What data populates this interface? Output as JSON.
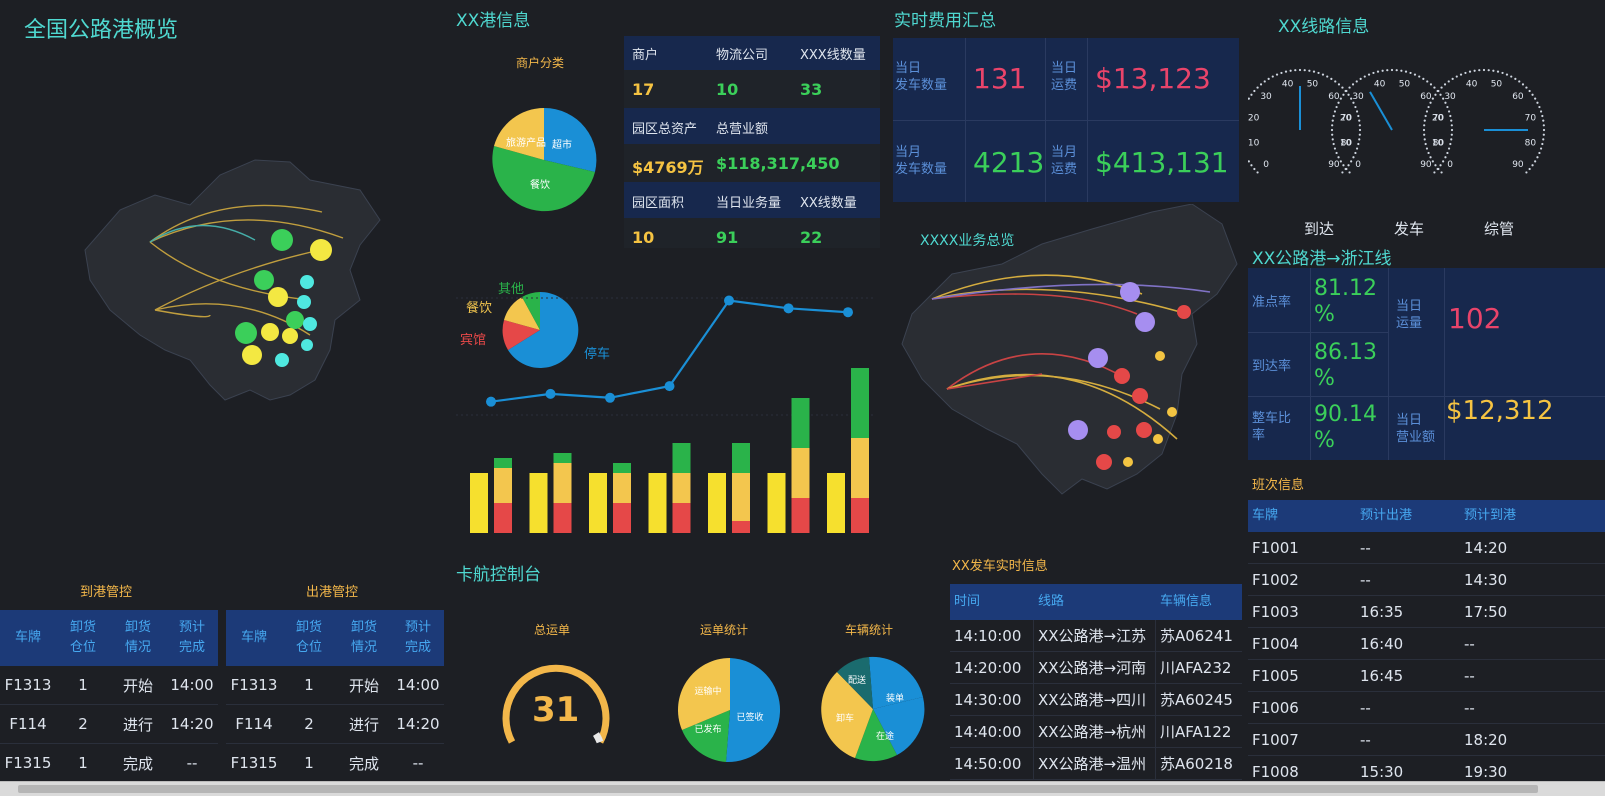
{
  "header": {
    "title": "全国公路港概览"
  },
  "port": {
    "title": "XX港信息",
    "pie_title": "商户分类",
    "pie_labels": [
      "超市",
      "餐饮",
      "旅游产品"
    ],
    "stats": [
      {
        "labels": [
          "商户",
          "物流公司",
          "XXX线数量"
        ],
        "values": [
          "17",
          "10",
          "33"
        ]
      },
      {
        "labels": [
          "园区总资产",
          "总营业额"
        ],
        "values": [
          "$4769万",
          "$118,317,450"
        ]
      },
      {
        "labels": [
          "园区面积",
          "当日业务量",
          "XX线数量"
        ],
        "values": [
          "10",
          "91",
          "22"
        ]
      }
    ],
    "pie2_labels": [
      "其他",
      "餐饮",
      "宾馆",
      "停车"
    ]
  },
  "combo": {
    "line_values": [
      3,
      4,
      3.5,
      5,
      16,
      15,
      14.5
    ],
    "bars": [
      {
        "red": 30,
        "yellow": 35,
        "green": 10
      },
      {
        "red": 30,
        "yellow": 40,
        "green": 10
      },
      {
        "red": 30,
        "yellow": 30,
        "green": 10
      },
      {
        "red": 30,
        "yellow": 30,
        "green": 30
      },
      {
        "red": 12,
        "yellow": 48,
        "green": 30
      },
      {
        "red": 35,
        "yellow": 50,
        "green": 50
      },
      {
        "red": 35,
        "yellow": 60,
        "green": 70
      }
    ]
  },
  "fees": {
    "title": "实时费用汇总",
    "rows": [
      {
        "l1": "当日\n发车数量",
        "v1": "131",
        "l2": "当日\n运费",
        "v2": "$13,123"
      },
      {
        "l1": "当月\n发车数量",
        "v1": "4213",
        "l2": "当月\n运费",
        "v2": "$413,131"
      }
    ]
  },
  "xxmap": {
    "title": "XXXX业务总览"
  },
  "route": {
    "title": "XX线路信息",
    "gauges": [
      {
        "label": "到达",
        "value": 45
      },
      {
        "label": "发车",
        "value": 35
      },
      {
        "label": "综管",
        "value": 75
      }
    ],
    "gauge_ticks": [
      "0",
      "10",
      "20",
      "30",
      "40",
      "50",
      "60",
      "70",
      "80",
      "90"
    ],
    "zj_title": "XX公路港→浙江线",
    "zj": [
      {
        "l1": "准点率",
        "v1": "81.12\n%",
        "l2": "当日\n运量",
        "v2": "102",
        "c2": "#e9446a"
      },
      {
        "l1": "到达率",
        "v1": "86.13\n%",
        "l2": "",
        "v2": "",
        "c2": ""
      },
      {
        "l1": "整车比\n率",
        "v1": "90.14\n%",
        "l2": "当日\n营业额",
        "v2": "$12,312",
        "c2": "#f5c342"
      }
    ]
  },
  "schedule": {
    "title": "班次信息",
    "headers": [
      "车牌",
      "预计出港",
      "预计到港"
    ],
    "rows": [
      [
        "F1001",
        "--",
        "14:20"
      ],
      [
        "F1002",
        "--",
        "14:30"
      ],
      [
        "F1003",
        "16:35",
        "17:50"
      ],
      [
        "F1004",
        "16:40",
        "--"
      ],
      [
        "F1005",
        "16:45",
        "--"
      ],
      [
        "F1006",
        "--",
        "--"
      ],
      [
        "F1007",
        "--",
        "18:20"
      ],
      [
        "F1008",
        "15:30",
        "19:30"
      ]
    ]
  },
  "arrive": {
    "title": "到港管控",
    "headers": [
      "车牌",
      "卸货\n仓位",
      "卸货\n情况",
      "预计\n完成"
    ],
    "rows": [
      [
        "F1313",
        "1",
        "开始",
        "14:00"
      ],
      [
        "F114",
        "2",
        "进行",
        "14:20"
      ],
      [
        "F1315",
        "1",
        "完成",
        "--"
      ]
    ]
  },
  "depart": {
    "title": "出港管控",
    "headers": [
      "车牌",
      "卸货\n仓位",
      "卸货\n情况",
      "预计\n完成"
    ],
    "rows": [
      [
        "F1313",
        "1",
        "开始",
        "14:00"
      ],
      [
        "F114",
        "2",
        "进行",
        "14:20"
      ],
      [
        "F1315",
        "1",
        "完成",
        "--"
      ]
    ]
  },
  "console": {
    "title": "卡航控制台",
    "g1_title": "总运单",
    "g1_value": "31",
    "g2_title": "运单统计",
    "g2_labels": [
      "已签收",
      "运输中",
      "已发布"
    ],
    "g3_title": "车辆统计",
    "g3_labels": [
      "卸车",
      "配送",
      "装单",
      "在途"
    ]
  },
  "dispatch": {
    "title": "XX发车实时信息",
    "headers": [
      "时间",
      "线路",
      "车辆信息"
    ],
    "rows": [
      [
        "14:10:00",
        "XX公路港→江苏",
        "苏A06241"
      ],
      [
        "14:20:00",
        "XX公路港→河南",
        "川AFA232"
      ],
      [
        "14:30:00",
        "XX公路港→四川",
        "苏A60245"
      ],
      [
        "14:40:00",
        "XX公路港→杭州",
        "川AFA122"
      ],
      [
        "14:50:00",
        "XX公路港→温州",
        "苏A60218"
      ]
    ]
  },
  "colors": {
    "teal": "#4fd8d0",
    "gold": "#f5c342",
    "green": "#3bcf5a",
    "pink": "#e9446a",
    "blue": "#1a8fd6",
    "navy": "#17284d"
  }
}
